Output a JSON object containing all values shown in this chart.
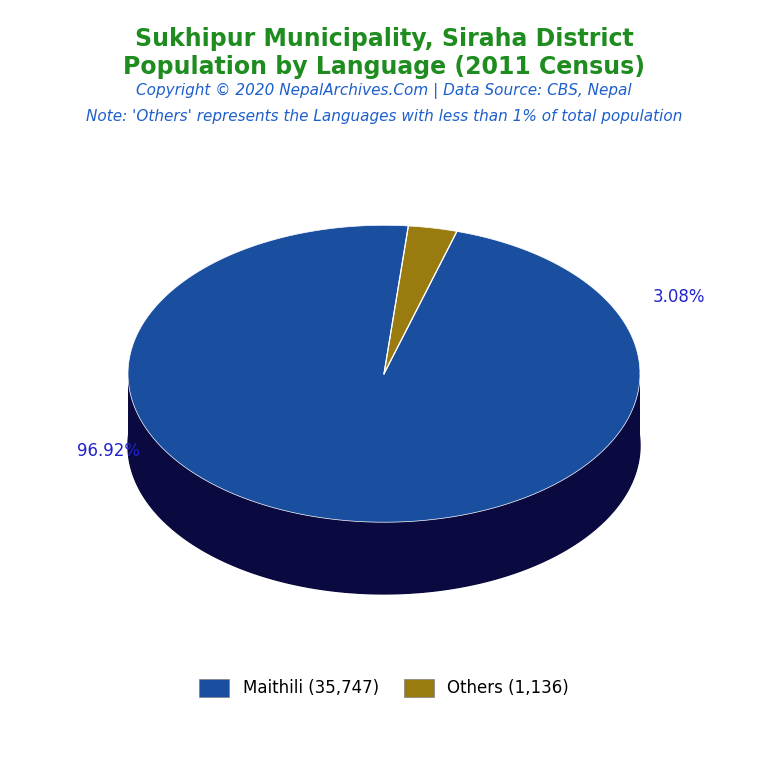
{
  "title_line1": "Sukhipur Municipality, Siraha District",
  "title_line2": "Population by Language (2011 Census)",
  "title_color": "#1e8c1e",
  "copyright_text": "Copyright © 2020 NepalArchives.Com | Data Source: CBS, Nepal",
  "copyright_color": "#1e5fcc",
  "note_text": "Note: 'Others' represents the Languages with less than 1% of total population",
  "note_color": "#1e5fcc",
  "labels": [
    "Maithili (35,747)",
    "Others (1,136)"
  ],
  "values": [
    35747,
    1136
  ],
  "percentages": [
    "96.92%",
    "3.08%"
  ],
  "colors": [
    "#1a4fa0",
    "#9a7b10"
  ],
  "side_colors": [
    "#0a0a40",
    "#5a4800"
  ],
  "background_color": "#ffffff",
  "label_color": "#2222cc",
  "legend_fontsize": 12,
  "title_fontsize": 17,
  "copyright_fontsize": 11,
  "note_fontsize": 11
}
